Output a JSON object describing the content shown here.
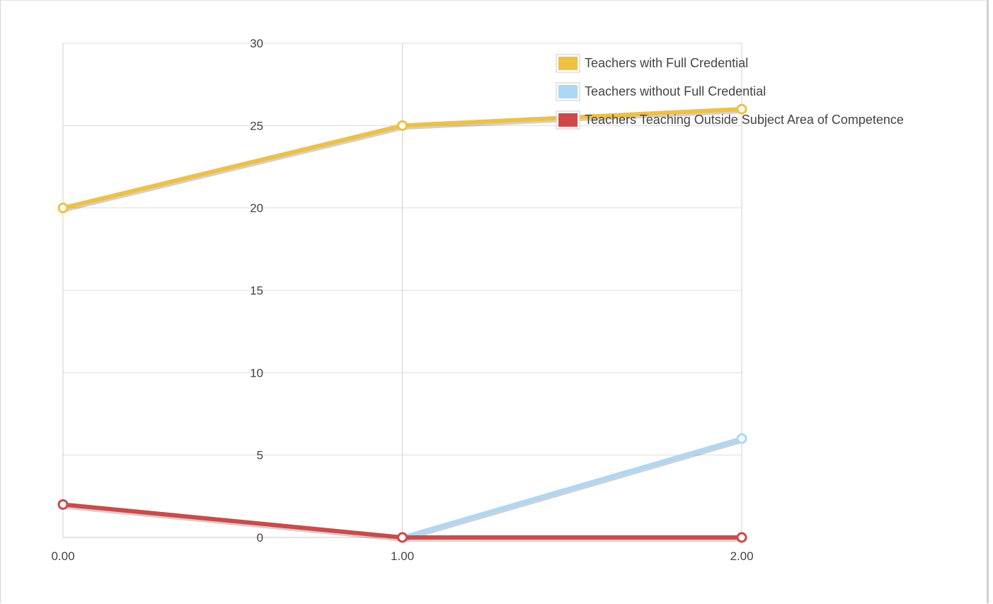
{
  "chart_data": {
    "type": "line",
    "title": "",
    "xlabel": "",
    "ylabel": "",
    "xlim": [
      0,
      2
    ],
    "ylim": [
      0,
      30
    ],
    "x_ticks": [
      "0.00",
      "1.00",
      "2.00"
    ],
    "y_ticks": [
      "0",
      "5",
      "10",
      "15",
      "20",
      "25",
      "30"
    ],
    "grid": true,
    "legend_position": "top-right",
    "series": [
      {
        "name": "Teachers with Full Credential",
        "color": "#f0c040",
        "x": [
          0,
          1,
          2
        ],
        "y": [
          20,
          25,
          26
        ]
      },
      {
        "name": "Teachers without Full Credential",
        "color": "#add8f5",
        "x": [
          1,
          2
        ],
        "y": [
          0,
          6
        ]
      },
      {
        "name": "Teachers Teaching Outside Subject Area of Competence",
        "color": "#d04848",
        "x": [
          0,
          1,
          2
        ],
        "y": [
          2,
          0,
          0
        ]
      }
    ]
  }
}
